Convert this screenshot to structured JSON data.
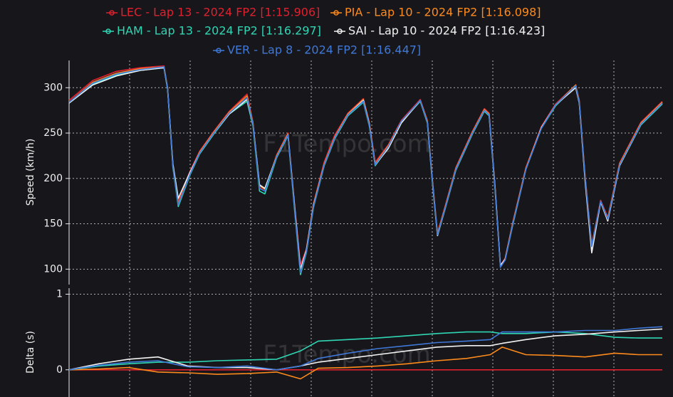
{
  "watermark": "F1Tempo.com",
  "chart_data": [
    {
      "type": "line",
      "ylabel": "Speed (km/h)",
      "x": [
        0,
        4,
        8,
        12,
        16,
        16.6,
        17.5,
        18.4,
        20.4,
        22,
        24.4,
        27,
        30,
        31,
        32.1,
        33,
        35,
        36.9,
        38,
        39,
        40,
        41.2,
        43,
        44.8,
        47,
        49.6,
        50.6,
        51.6,
        53.8,
        56,
        59.2,
        60.4,
        61.2,
        62.1,
        63.5,
        65.2,
        68,
        70,
        70.8,
        71.8,
        72.7,
        73.5,
        74.8,
        77,
        79.6,
        82,
        85.4,
        86,
        87,
        88.1,
        89.6,
        90.8,
        92.8,
        96.4,
        100
      ],
      "ylim": [
        83,
        330
      ],
      "yticks": [
        100,
        150,
        200,
        250,
        300
      ],
      "series": [
        {
          "name": "LEC - Lap 13 - 2024 FP2 [1:15.906]",
          "color": "#e0202f",
          "values": [
            286,
            308,
            318,
            322,
            324,
            300,
            212,
            175,
            208,
            230,
            252,
            274,
            293,
            262,
            190,
            186,
            226,
            250,
            172,
            105,
            122,
            172,
            218,
            248,
            272,
            288,
            262,
            218,
            237,
            264,
            287,
            264,
            202,
            140,
            172,
            212,
            252,
            277,
            272,
            192,
            104,
            112,
            152,
            212,
            257,
            282,
            303,
            286,
            202,
            127,
            176,
            157,
            217,
            262,
            285
          ]
        },
        {
          "name": "PIA - Lap 10 - 2024 FP2 [1:16.098]",
          "color": "#ff8a1c",
          "values": [
            284,
            306,
            316,
            321,
            323,
            300,
            214,
            172,
            206,
            229,
            251,
            273,
            291,
            261,
            192,
            188,
            225,
            249,
            170,
            98,
            121,
            171,
            216,
            246,
            271,
            287,
            261,
            216,
            236,
            263,
            286,
            263,
            201,
            139,
            171,
            211,
            251,
            276,
            271,
            190,
            103,
            111,
            151,
            211,
            256,
            281,
            303,
            285,
            201,
            126,
            175,
            156,
            216,
            261,
            284
          ]
        },
        {
          "name": "HAM - Lap 13 - 2024 FP2 [1:16.297]",
          "color": "#2fd6b4",
          "values": [
            283,
            304,
            314,
            319,
            322,
            298,
            212,
            169,
            204,
            227,
            249,
            271,
            285,
            258,
            186,
            183,
            223,
            247,
            166,
            94,
            118,
            168,
            214,
            244,
            269,
            284,
            258,
            214,
            234,
            262,
            285,
            261,
            198,
            137,
            169,
            209,
            249,
            274,
            269,
            188,
            104,
            110,
            149,
            210,
            255,
            280,
            302,
            284,
            198,
            124,
            174,
            154,
            214,
            259,
            282
          ]
        },
        {
          "name": "SAI - Lap 10 - 2024 FP2 [1:16.423]",
          "color": "#f2f2f2",
          "values": [
            283,
            303,
            313,
            319,
            322,
            299,
            216,
            178,
            207,
            228,
            250,
            271,
            287,
            260,
            193,
            189,
            224,
            248,
            171,
            100,
            121,
            170,
            215,
            245,
            270,
            286,
            260,
            215,
            233,
            261,
            286,
            262,
            200,
            137,
            170,
            210,
            250,
            275,
            270,
            191,
            104,
            111,
            150,
            210,
            256,
            281,
            300,
            283,
            196,
            118,
            174,
            153,
            214,
            260,
            283
          ]
        },
        {
          "name": "VER - Lap 8 - 2024 FP2 [1:16.447]",
          "color": "#3f78d8",
          "values": [
            284,
            305,
            315,
            320,
            323,
            299,
            213,
            171,
            205,
            228,
            250,
            272,
            289,
            260,
            189,
            186,
            224,
            248,
            168,
            96,
            119,
            169,
            215,
            245,
            270,
            285,
            259,
            215,
            235,
            263,
            286,
            262,
            200,
            138,
            170,
            210,
            250,
            275,
            270,
            189,
            102,
            110,
            150,
            210,
            255,
            281,
            302,
            284,
            200,
            125,
            175,
            155,
            215,
            260,
            283
          ]
        }
      ]
    },
    {
      "type": "line",
      "ylabel": "Delta (s)",
      "x": [
        0,
        5,
        10,
        15,
        20,
        25,
        30,
        35,
        39,
        42,
        47,
        52,
        57,
        62,
        67,
        71,
        73,
        77,
        82,
        87,
        92,
        96,
        100
      ],
      "ylim": [
        -0.36,
        1.08
      ],
      "yticks": [
        0,
        1
      ],
      "series": [
        {
          "color": "#e0202f",
          "values": [
            0,
            0,
            0,
            0,
            0,
            0,
            0,
            0,
            0,
            0,
            0,
            0,
            0,
            0,
            0,
            0,
            0,
            0,
            0,
            0,
            0,
            0,
            0
          ]
        },
        {
          "color": "#ff8a1c",
          "values": [
            0,
            0.01,
            0.03,
            -0.03,
            -0.04,
            -0.06,
            -0.05,
            -0.03,
            -0.12,
            0.02,
            0.03,
            0.05,
            0.08,
            0.12,
            0.15,
            0.2,
            0.3,
            0.2,
            0.19,
            0.17,
            0.22,
            0.2,
            0.2
          ]
        },
        {
          "color": "#2fd6b4",
          "values": [
            0,
            0.05,
            0.08,
            0.1,
            0.1,
            0.12,
            0.13,
            0.14,
            0.25,
            0.38,
            0.4,
            0.42,
            0.45,
            0.48,
            0.5,
            0.5,
            0.48,
            0.48,
            0.5,
            0.48,
            0.43,
            0.42,
            0.42
          ]
        },
        {
          "color": "#f2f2f2",
          "values": [
            0,
            0.08,
            0.14,
            0.17,
            0.05,
            0.03,
            0.03,
            0,
            0.05,
            0.1,
            0.15,
            0.2,
            0.25,
            0.3,
            0.32,
            0.32,
            0.35,
            0.4,
            0.45,
            0.47,
            0.5,
            0.52,
            0.54
          ]
        },
        {
          "color": "#3f78d8",
          "values": [
            0,
            0.06,
            0.1,
            0.12,
            0.04,
            0.03,
            0.05,
            0,
            0.05,
            0.15,
            0.22,
            0.28,
            0.32,
            0.36,
            0.38,
            0.4,
            0.5,
            0.5,
            0.5,
            0.52,
            0.52,
            0.55,
            0.57
          ]
        }
      ]
    }
  ]
}
